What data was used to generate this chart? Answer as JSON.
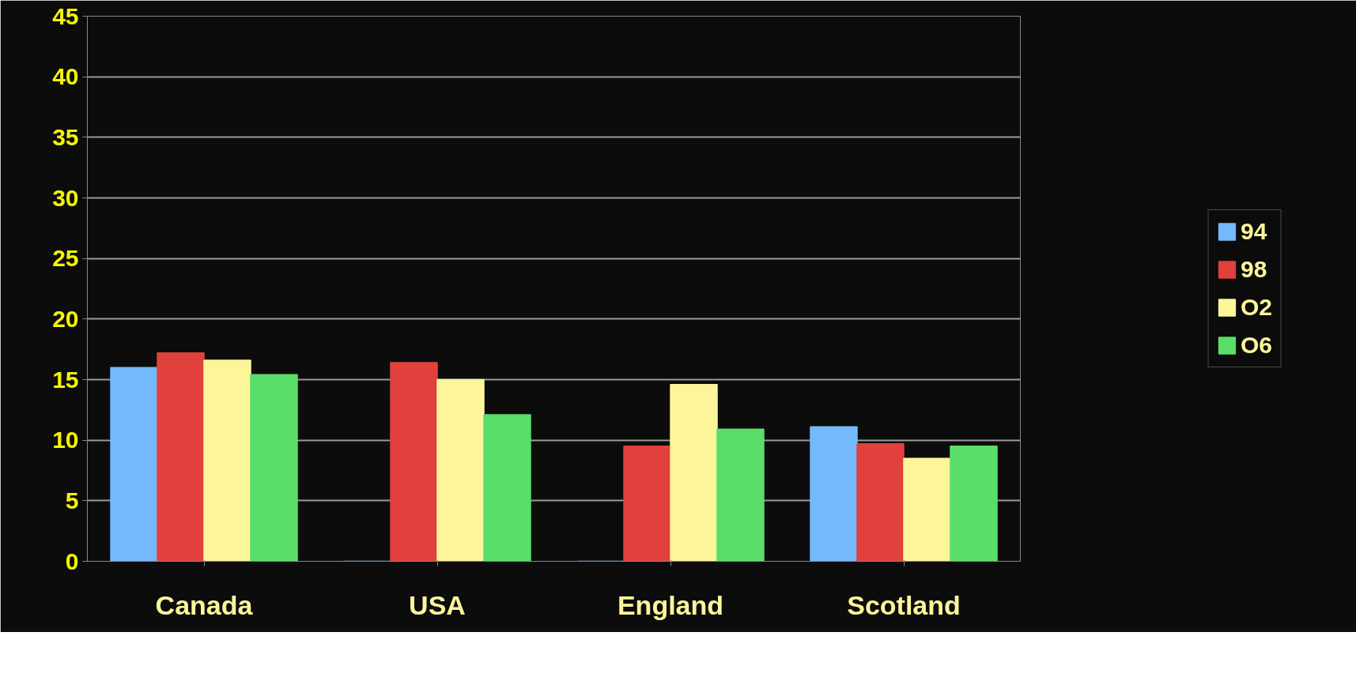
{
  "chart_data": {
    "type": "bar",
    "categories": [
      "Canada",
      "USA",
      "England",
      "Scotland"
    ],
    "series": [
      {
        "name": "94",
        "color": "#74b9fb",
        "values": [
          16.0,
          0,
          0,
          11.1
        ]
      },
      {
        "name": "98",
        "color": "#e0413c",
        "values": [
          17.2,
          16.4,
          9.5,
          9.7
        ]
      },
      {
        "name": "O2",
        "color": "#fdf59a",
        "values": [
          16.6,
          15.0,
          14.6,
          8.5
        ]
      },
      {
        "name": "O6",
        "color": "#5ade6a",
        "values": [
          15.4,
          12.1,
          10.9,
          9.5
        ]
      }
    ],
    "ylim": [
      0,
      45
    ],
    "yticks": [
      0,
      5,
      10,
      15,
      20,
      25,
      30,
      35,
      40,
      45
    ],
    "grid": "y",
    "legend": "right"
  }
}
